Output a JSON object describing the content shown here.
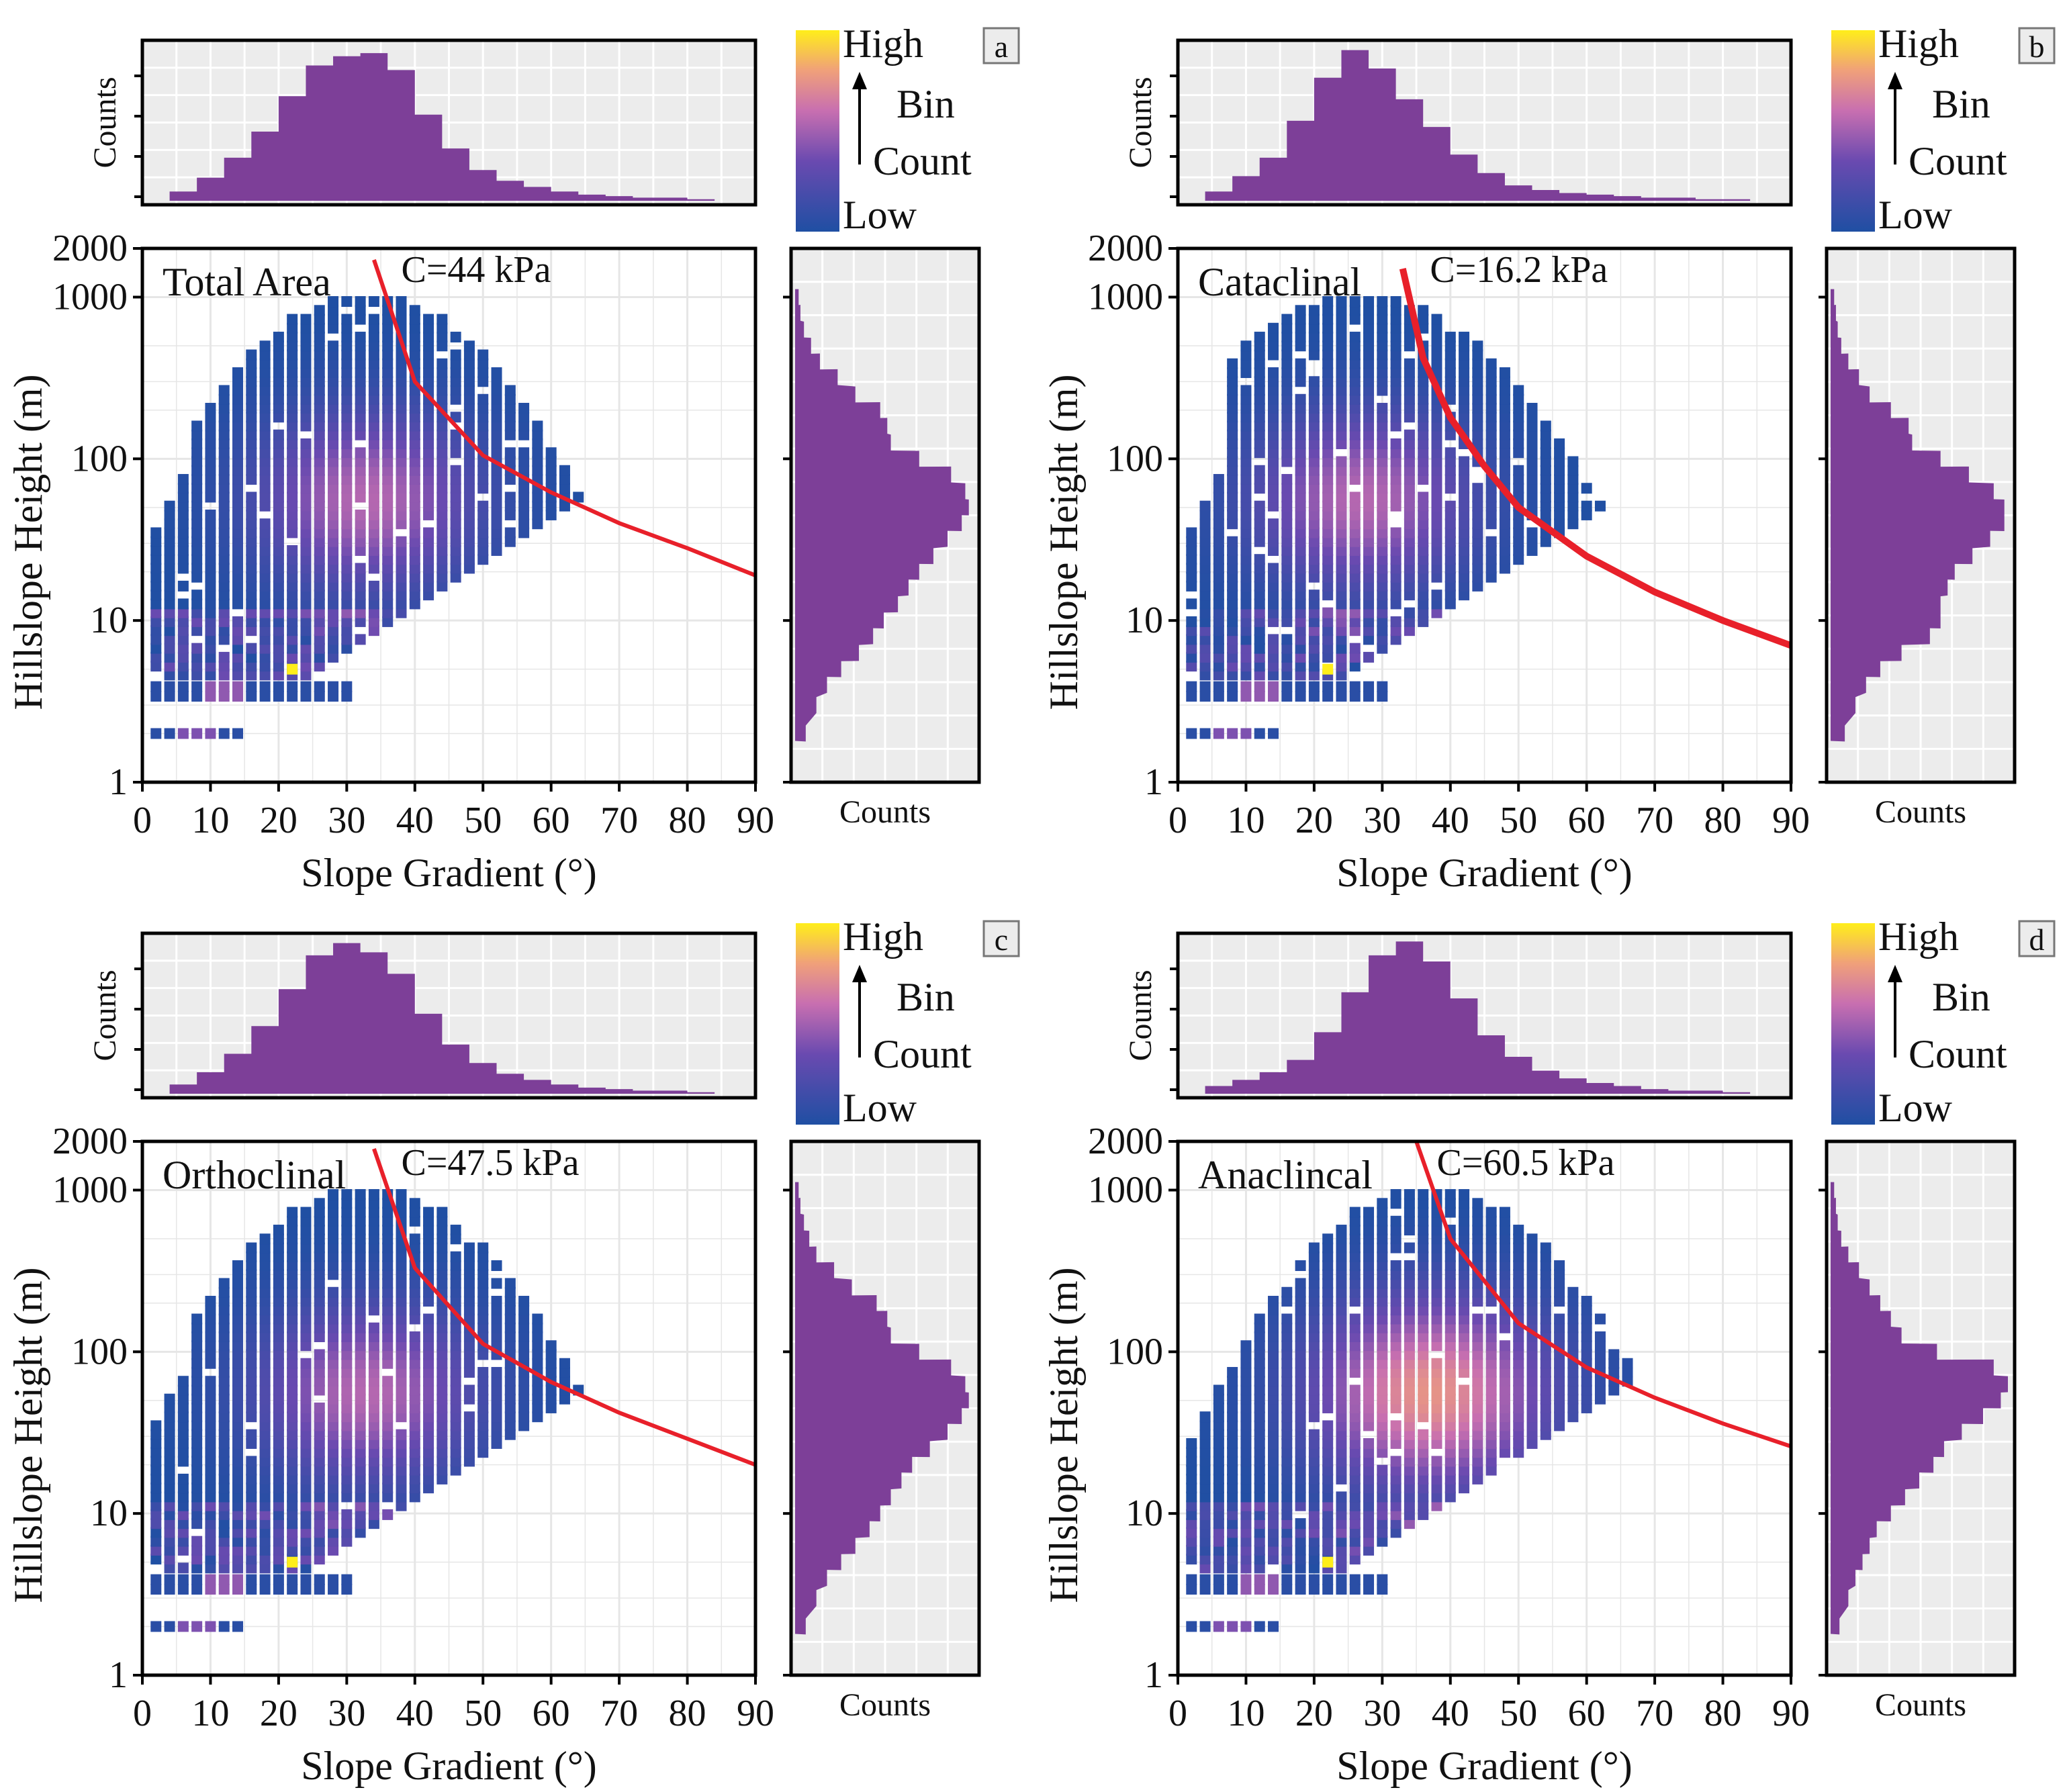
{
  "figure": {
    "shared": {
      "x_axis_label": "Slope Gradient (°)",
      "y_axis_label": "Hillslope Height (m)",
      "x_ticks": [
        "0",
        "10",
        "20",
        "30",
        "40",
        "50",
        "60",
        "70",
        "80",
        "90"
      ],
      "y_ticks": [
        "1",
        "10",
        "100",
        "1000",
        "2000"
      ],
      "marginal_label": "Counts",
      "colorbar": {
        "high": "High",
        "bin": "Bin",
        "count": "Count",
        "low": "Low"
      }
    },
    "colors": {
      "low_bin": "#1f4fa3",
      "mid_bin": "#8b4fa9",
      "high_bin": "#ffee1a",
      "pink_bin": "#e98ab8",
      "curve": "#e8202a",
      "histogram": "#7d3f98",
      "panel_bg": "#ececec",
      "grid": "#ffffff"
    }
  },
  "chart_data": [
    {
      "panel_letter": "a",
      "type": "heatmap",
      "title": "Total Area",
      "annotation": "C=44 kPa",
      "cohesion_kpa": 44,
      "xlabel": "Slope Gradient (°)",
      "ylabel": "Hillslope Height (m)",
      "xlim": [
        0,
        90
      ],
      "ylim_log10": [
        1,
        2000
      ],
      "curve": {
        "x": [
          34,
          40,
          50,
          60,
          70,
          80,
          90
        ],
        "y": [
          1700,
          300,
          105,
          62,
          40,
          28,
          19
        ]
      },
      "top_histogram": {
        "label": "Counts",
        "bins": [
          6,
          10,
          14,
          18,
          22,
          26,
          30,
          34,
          38,
          42,
          46,
          50,
          54,
          58,
          62,
          66,
          70,
          74,
          78,
          82
        ],
        "values": [
          6,
          15,
          28,
          45,
          68,
          88,
          94,
          96,
          85,
          56,
          34,
          20,
          13,
          9,
          6,
          4,
          3,
          2,
          2,
          1
        ]
      },
      "right_histogram": {
        "label": "Counts",
        "y_values": [
          2,
          3,
          4,
          5,
          6.3,
          8,
          10,
          12.6,
          16,
          20,
          25,
          32,
          40,
          50,
          63,
          80,
          100,
          126,
          160,
          200,
          250,
          320,
          400,
          500,
          630,
          800,
          1000
        ],
        "values": [
          6,
          12,
          18,
          26,
          36,
          44,
          50,
          58,
          64,
          70,
          78,
          86,
          94,
          98,
          96,
          88,
          70,
          54,
          52,
          48,
          34,
          24,
          14,
          9,
          5,
          3,
          2
        ]
      }
    },
    {
      "panel_letter": "b",
      "type": "heatmap",
      "title": "Cataclinal",
      "annotation": "C=16.2 kPa",
      "cohesion_kpa": 16.2,
      "xlabel": "Slope Gradient (°)",
      "ylabel": "Hillslope Height (m)",
      "xlim": [
        0,
        90
      ],
      "ylim_log10": [
        1,
        2000
      ],
      "curve": {
        "x": [
          33,
          36,
          40,
          45,
          50,
          60,
          70,
          80,
          90
        ],
        "y": [
          1500,
          420,
          180,
          90,
          50,
          25,
          15,
          10,
          7
        ]
      },
      "top_histogram": {
        "label": "Counts",
        "bins": [
          6,
          10,
          14,
          18,
          22,
          26,
          30,
          34,
          38,
          42,
          46,
          50,
          54,
          58,
          62,
          66,
          70,
          74,
          78,
          82
        ],
        "values": [
          6,
          16,
          28,
          52,
          80,
          98,
          86,
          66,
          48,
          30,
          18,
          10,
          7,
          5,
          4,
          3,
          2,
          2,
          1,
          1
        ]
      },
      "right_histogram": {
        "label": "Counts",
        "y_values": [
          2,
          3,
          4,
          5,
          6.3,
          8,
          10,
          12.6,
          16,
          20,
          25,
          32,
          40,
          50,
          63,
          80,
          100,
          126,
          160,
          200,
          250,
          320,
          400,
          500,
          630,
          800,
          1000
        ],
        "values": [
          8,
          14,
          20,
          28,
          40,
          56,
          62,
          62,
          66,
          70,
          80,
          90,
          98,
          98,
          92,
          78,
          62,
          46,
          44,
          34,
          22,
          16,
          10,
          6,
          4,
          3,
          2
        ]
      }
    },
    {
      "panel_letter": "c",
      "type": "heatmap",
      "title": "Orthoclinal",
      "annotation": "C=47.5 kPa",
      "cohesion_kpa": 47.5,
      "xlabel": "Slope Gradient (°)",
      "ylabel": "Hillslope Height (m)",
      "xlim": [
        0,
        90
      ],
      "ylim_log10": [
        1,
        2000
      ],
      "curve": {
        "x": [
          34,
          40,
          50,
          60,
          70,
          80,
          90
        ],
        "y": [
          1800,
          330,
          112,
          65,
          42,
          29,
          20
        ]
      },
      "top_histogram": {
        "label": "Counts",
        "bins": [
          6,
          10,
          14,
          18,
          22,
          26,
          30,
          34,
          38,
          42,
          46,
          50,
          54,
          58,
          62,
          66,
          70,
          74,
          78,
          82
        ],
        "values": [
          6,
          14,
          26,
          44,
          68,
          90,
          98,
          92,
          78,
          52,
          32,
          20,
          13,
          9,
          6,
          4,
          3,
          2,
          2,
          1
        ]
      },
      "right_histogram": {
        "label": "Counts",
        "y_values": [
          2,
          3,
          4,
          5,
          6.3,
          8,
          10,
          12.6,
          16,
          20,
          25,
          32,
          40,
          50,
          63,
          80,
          100,
          126,
          160,
          200,
          250,
          320,
          400,
          500,
          630,
          800,
          1000
        ],
        "values": [
          6,
          12,
          18,
          26,
          34,
          42,
          48,
          54,
          60,
          66,
          76,
          86,
          94,
          98,
          96,
          88,
          70,
          54,
          52,
          46,
          32,
          22,
          12,
          8,
          5,
          3,
          2
        ]
      }
    },
    {
      "panel_letter": "d",
      "type": "heatmap",
      "title": "Anaclincal",
      "annotation": "C=60.5 kPa",
      "cohesion_kpa": 60.5,
      "xlabel": "Slope Gradient (°)",
      "ylabel": "Hillslope Height (m)",
      "xlim": [
        0,
        90
      ],
      "ylim_log10": [
        1,
        2000
      ],
      "curve": {
        "x": [
          35,
          40,
          50,
          60,
          70,
          80,
          90
        ],
        "y": [
          2000,
          500,
          150,
          80,
          52,
          36,
          26
        ]
      },
      "top_histogram": {
        "label": "Counts",
        "bins": [
          6,
          10,
          14,
          18,
          22,
          26,
          30,
          34,
          38,
          42,
          46,
          50,
          54,
          58,
          62,
          66,
          70,
          74,
          78,
          82
        ],
        "values": [
          5,
          9,
          14,
          22,
          40,
          66,
          90,
          99,
          86,
          62,
          38,
          24,
          15,
          10,
          7,
          5,
          3,
          2,
          2,
          1
        ]
      },
      "right_histogram": {
        "label": "Counts",
        "y_values": [
          2,
          3,
          4,
          5,
          6.3,
          8,
          10,
          12.6,
          16,
          20,
          25,
          32,
          40,
          50,
          63,
          80,
          100,
          126,
          160,
          200,
          250,
          320,
          400,
          500,
          630,
          800,
          1000
        ],
        "values": [
          5,
          10,
          14,
          18,
          22,
          26,
          34,
          42,
          50,
          58,
          64,
          74,
          86,
          96,
          100,
          92,
          60,
          40,
          34,
          28,
          22,
          16,
          10,
          6,
          4,
          3,
          2
        ]
      }
    }
  ]
}
